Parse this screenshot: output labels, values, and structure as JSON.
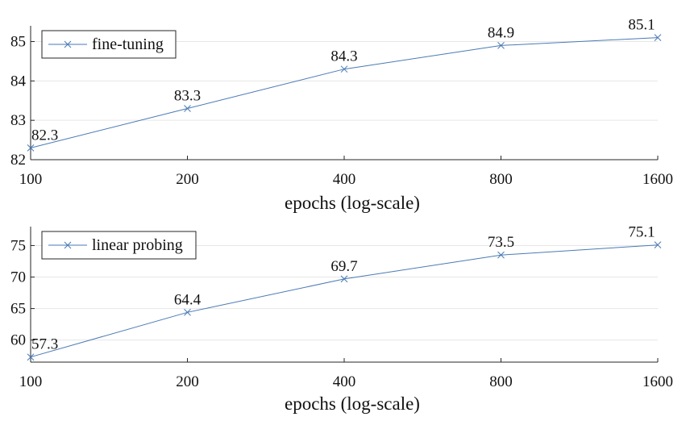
{
  "colors": {
    "series": "#4a7ab5",
    "grid": "#e6e6e6",
    "axis": "#262626"
  },
  "chart_data": [
    {
      "type": "line",
      "x": [
        100,
        200,
        400,
        800,
        1600
      ],
      "series": [
        {
          "name": "fine-tuning",
          "values": [
            82.3,
            83.3,
            84.3,
            84.9,
            85.1
          ],
          "marker": "x"
        }
      ],
      "data_labels": [
        "82.3",
        "83.3",
        "84.3",
        "84.9",
        "85.1"
      ],
      "x_ticks": [
        "100",
        "200",
        "400",
        "800",
        "1600"
      ],
      "y_ticks": [
        82,
        83,
        84,
        85
      ],
      "xlabel": "epochs (log-scale)",
      "ylabel": "",
      "xscale": "log",
      "xlim": [
        100,
        1600
      ],
      "ylim": [
        82,
        85.4
      ],
      "grid": "horizontal",
      "legend": "top-left"
    },
    {
      "type": "line",
      "x": [
        100,
        200,
        400,
        800,
        1600
      ],
      "series": [
        {
          "name": "linear probing",
          "values": [
            57.3,
            64.4,
            69.7,
            73.5,
            75.1
          ],
          "marker": "x"
        }
      ],
      "data_labels": [
        "57.3",
        "64.4",
        "69.7",
        "73.5",
        "75.1"
      ],
      "x_ticks": [
        "100",
        "200",
        "400",
        "800",
        "1600"
      ],
      "y_ticks": [
        60,
        65,
        70,
        75
      ],
      "xlabel": "epochs (log-scale)",
      "ylabel": "",
      "xscale": "log",
      "xlim": [
        100,
        1600
      ],
      "ylim": [
        56.5,
        78
      ],
      "grid": "horizontal",
      "legend": "top-left"
    }
  ]
}
